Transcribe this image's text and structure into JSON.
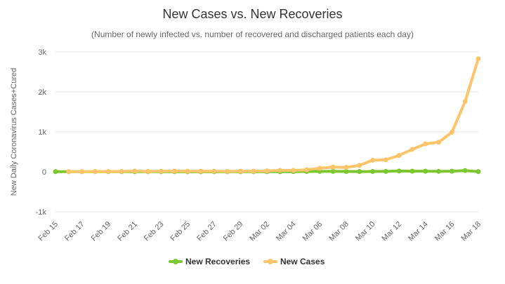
{
  "chart_data": {
    "type": "line",
    "title": "New Cases vs. New Recoveries",
    "subtitle": "(Number of newly infected vs. number of recovered and discharged patients each day)",
    "xlabel": "",
    "ylabel": "New Daily Coronavirus Cases+Cured",
    "ylim": [
      -1000,
      3000
    ],
    "yticks": [
      -1000,
      0,
      1000,
      2000,
      3000
    ],
    "ytick_labels": [
      "-1k",
      "0",
      "1k",
      "2k",
      "3k"
    ],
    "grid": "horizontal",
    "legend_position": "bottom",
    "x": [
      "Feb 15",
      "Feb 16",
      "Feb 17",
      "Feb 18",
      "Feb 19",
      "Feb 20",
      "Feb 21",
      "Feb 22",
      "Feb 23",
      "Feb 24",
      "Feb 25",
      "Feb 26",
      "Feb 27",
      "Feb 28",
      "Feb 29",
      "Mar 01",
      "Mar 02",
      "Mar 03",
      "Mar 04",
      "Mar 05",
      "Mar 06",
      "Mar 07",
      "Mar 08",
      "Mar 09",
      "Mar 10",
      "Mar 11",
      "Mar 12",
      "Mar 13",
      "Mar 14",
      "Mar 15",
      "Mar 16",
      "Mar 17",
      "Mar 18"
    ],
    "xtick_labels": [
      "Feb 15",
      "Feb 17",
      "Feb 19",
      "Feb 21",
      "Feb 23",
      "Feb 25",
      "Feb 27",
      "Feb 29",
      "Mar 02",
      "Mar 04",
      "Mar 06",
      "Mar 08",
      "Mar 10",
      "Mar 12",
      "Mar 14",
      "Mar 16",
      "Mar 18"
    ],
    "series": [
      {
        "name": "New Recoveries",
        "color": "#7cc62f",
        "values": [
          5,
          3,
          4,
          4,
          4,
          4,
          3,
          3,
          3,
          3,
          2,
          2,
          2,
          2,
          3,
          3,
          5,
          5,
          6,
          8,
          10,
          10,
          8,
          6,
          8,
          10,
          20,
          15,
          15,
          10,
          15,
          30,
          5
        ]
      },
      {
        "name": "New Cases",
        "color": "#fdc56b",
        "values": [
          null,
          5,
          6,
          7,
          8,
          10,
          20,
          10,
          15,
          20,
          15,
          15,
          15,
          10,
          15,
          15,
          25,
          35,
          35,
          50,
          90,
          120,
          110,
          160,
          290,
          300,
          410,
          560,
          700,
          740,
          990,
          1760,
          2830
        ]
      }
    ]
  }
}
